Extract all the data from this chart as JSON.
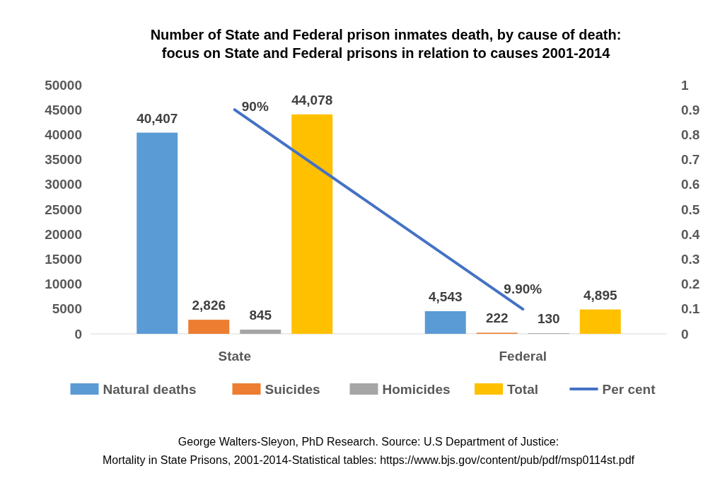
{
  "chart_data": {
    "type": "bar",
    "title": "Number of State and Federal prison inmates death, by cause of death:\nfocus on State and Federal prisons in relation to causes 2001-2014",
    "categories": [
      "State",
      "Federal"
    ],
    "series": [
      {
        "name": "Natural deaths",
        "color": "#5b9bd5",
        "values": [
          40407,
          4543
        ],
        "value_labels": [
          "40,407",
          "4,543"
        ]
      },
      {
        "name": "Suicides",
        "color": "#ed7d31",
        "values": [
          2826,
          222
        ],
        "value_labels": [
          "2,826",
          "222"
        ]
      },
      {
        "name": "Homicides",
        "color": "#a5a5a5",
        "values": [
          845,
          130
        ],
        "value_labels": [
          "845",
          "130"
        ]
      },
      {
        "name": "Total",
        "color": "#ffc000",
        "values": [
          44078,
          4895
        ],
        "value_labels": [
          "44,078",
          "4,895"
        ]
      },
      {
        "name": "Per cent",
        "color": "#4472c4",
        "type": "line",
        "axis": "y2",
        "values": [
          0.9,
          0.099
        ],
        "value_labels": [
          "90%",
          "9.90%"
        ]
      }
    ],
    "ylim": [
      0,
      50000
    ],
    "yticks": [
      0,
      5000,
      10000,
      15000,
      20000,
      25000,
      30000,
      35000,
      40000,
      45000,
      50000
    ],
    "y2lim": [
      0,
      1
    ],
    "y2ticks": [
      0,
      0.1,
      0.2,
      0.3,
      0.4,
      0.5,
      0.6,
      0.7,
      0.8,
      0.9,
      1
    ],
    "legend": "bottom",
    "annotations": [
      "George Walters-Sleyon, PhD Research. Source: U.S Department of Justice:",
      "Mortality in State Prisons, 2001-2014-Statistical tables: https://www.bjs.gov/content/pub/pdf/msp0114st.pdf"
    ]
  }
}
